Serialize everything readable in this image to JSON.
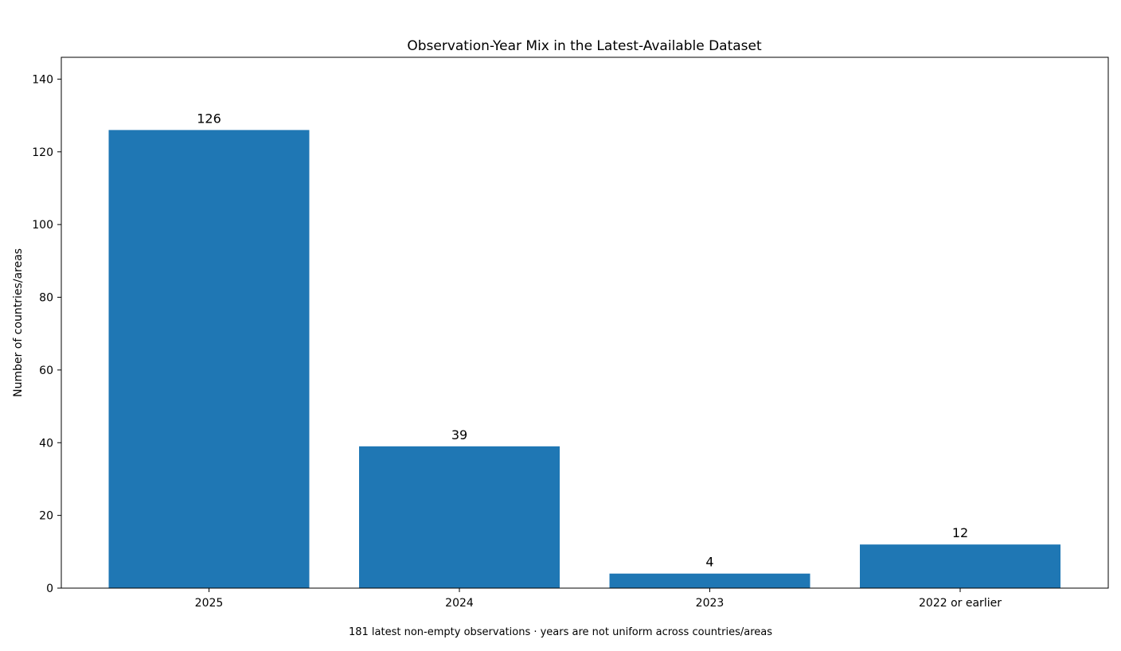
{
  "chart_data": {
    "type": "bar",
    "title": "Observation-Year Mix in the Latest-Available Dataset",
    "subtitle": "181 latest non-empty observations · years are not uniform across countries/areas",
    "xlabel": "",
    "ylabel": "Number of countries/areas",
    "categories": [
      "2025",
      "2024",
      "2023",
      "2022 or earlier"
    ],
    "values": [
      126,
      39,
      4,
      12
    ],
    "data_labels": [
      "126",
      "39",
      "4",
      "12"
    ],
    "ylim": [
      0,
      146
    ],
    "yticks": [
      0,
      20,
      40,
      60,
      80,
      100,
      120,
      140
    ],
    "grid": false,
    "legend": "none",
    "bar_color": "#1f77b4"
  }
}
